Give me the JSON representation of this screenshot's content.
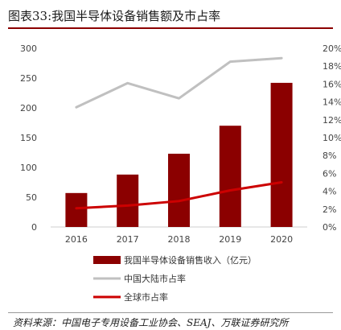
{
  "title": "图表33:我国半导体设备销售额及市占率",
  "source": "资料来源：中国电子专用设备工业协会、SEAJ、万联证券研究所",
  "colors": {
    "bar": "#8b0000",
    "china_share_line": "#c0c0c0",
    "global_share_line": "#cc0000"
  },
  "chart_data": {
    "type": "bar",
    "categories": [
      "2016",
      "2017",
      "2018",
      "2019",
      "2020"
    ],
    "y_left": {
      "ticks": [
        "0",
        "50",
        "100",
        "150",
        "200",
        "250",
        "300"
      ],
      "min": 0,
      "max": 300
    },
    "y_right": {
      "ticks": [
        "0%",
        "2%",
        "4%",
        "6%",
        "8%",
        "10%",
        "12%",
        "14%",
        "16%",
        "18%",
        "20%"
      ],
      "min": 0,
      "max": 20
    },
    "series": [
      {
        "name": "我国半导体设备销售收入（亿元）",
        "type": "bar",
        "axis": "left",
        "values": [
          57,
          88,
          123,
          170,
          242
        ]
      },
      {
        "name": "中国大陆市占率",
        "type": "line",
        "axis": "right",
        "values": [
          13.4,
          16.1,
          14.4,
          18.5,
          18.9
        ]
      },
      {
        "name": "全球市占率",
        "type": "line",
        "axis": "right",
        "values": [
          2.1,
          2.4,
          2.9,
          4.1,
          5.0
        ]
      }
    ],
    "legend_position": "bottom-left",
    "grid": false
  }
}
